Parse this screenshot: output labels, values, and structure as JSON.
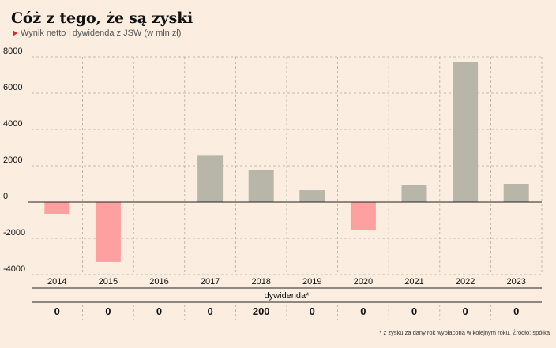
{
  "title": "Cóż z tego, że są zyski",
  "subtitle": "Wynik netto i dywidenda z JSW (w mln zł)",
  "footnote": "* z zysku za dany rok wypłacona w kolejnym roku. Źródło: spółka",
  "colors": {
    "positive": "#b7b6a9",
    "negative": "#ffa0a0",
    "background": "#fbeee0"
  },
  "chart_data": {
    "type": "bar",
    "categories": [
      "2014",
      "2015",
      "2016",
      "2017",
      "2018",
      "2019",
      "2020",
      "2021",
      "2022",
      "2023"
    ],
    "values": [
      -650,
      -3300,
      0,
      2550,
      1750,
      650,
      -1550,
      950,
      7700,
      1000
    ],
    "ylim": [
      -4000,
      8000
    ],
    "yticks": [
      -4000,
      -2000,
      0,
      2000,
      4000,
      6000,
      8000
    ],
    "ytick_labels": [
      "-4000",
      "-2000",
      "0",
      "2000",
      "4000",
      "6000",
      "8000"
    ],
    "grid": true,
    "dividend_label": "dywidenda*",
    "dividends": [
      "0",
      "0",
      "0",
      "0",
      "200",
      "0",
      "0",
      "0",
      "0",
      "0"
    ]
  }
}
